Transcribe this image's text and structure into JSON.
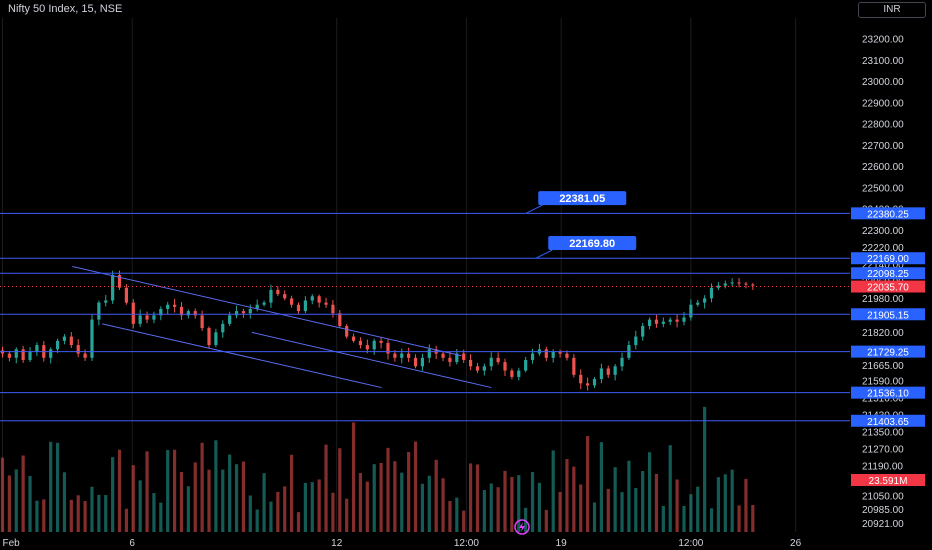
{
  "header": {
    "symbol": "Nifty 50 Index, 15, NSE",
    "currency": "INR"
  },
  "colors": {
    "background": "#000000",
    "grid": "#1c1c1c",
    "text": "#d1d4dc",
    "level_line": "#3f5bf5",
    "level_label_bg": "#2962ff",
    "channel_line": "#5a6cf0",
    "up_candle": "#26a69a",
    "down_candle": "#ef5350",
    "price_marker": "#f23645",
    "lightning_badge": "#e040fb"
  },
  "chart_data": {
    "type": "candlestick",
    "title": "Nifty 50 Index, 15, NSE",
    "y_axis": {
      "ylim": [
        20880,
        23300
      ],
      "ticks": [
        23200.0,
        23100.0,
        23000.0,
        22900.0,
        22800.0,
        22700.0,
        22600.0,
        22500.0,
        22400.0,
        22300.0,
        22220.0,
        22140.0,
        22060.0,
        21980.0,
        21900.0,
        21820.0,
        21740.0,
        21665.0,
        21590.0,
        21510.0,
        21430.0,
        21350.0,
        21270.0,
        21190.0,
        21120.0,
        21050.0,
        20985.0,
        20921.0
      ],
      "tick_labels": [
        "23200.00",
        "23100.00",
        "23000.00",
        "22900.00",
        "22800.00",
        "22700.00",
        "22600.00",
        "22500.00",
        "22400.00",
        "22300.00",
        "22220.00",
        "22140.00",
        "22060.00",
        "21980.00",
        "21900.00",
        "21820.00",
        "21740.00",
        "21665.00",
        "21590.00",
        "21510.00",
        "21430.00",
        "21350.00",
        "21270.00",
        "21190.00",
        "21120.00",
        "21050.00",
        "20985.00",
        "20921.00"
      ]
    },
    "x_axis": {
      "tick_labels": [
        "Feb",
        "6",
        "12",
        "12:00",
        "19",
        "12:00",
        "26"
      ],
      "tick_positions": [
        0,
        26,
        67,
        93,
        112,
        138,
        159
      ],
      "total_slots": 170
    },
    "horizontal_levels": [
      {
        "price": 22380.25,
        "label": "22380.25"
      },
      {
        "price": 22169.0,
        "label": "22169.00"
      },
      {
        "price": 22098.25,
        "label": "22098.25"
      },
      {
        "price": 21905.15,
        "label": "21905.15"
      },
      {
        "price": 21729.25,
        "label": "21729.25"
      },
      {
        "price": 21536.1,
        "label": "21536.10"
      },
      {
        "price": 21403.65,
        "label": "21403.65"
      }
    ],
    "callouts": [
      {
        "label": "22381.05",
        "price": 22381.05,
        "slot": 105
      },
      {
        "label": "22169.80",
        "price": 22169.8,
        "slot": 107
      }
    ],
    "channel_lines": [
      {
        "from": {
          "slot": 14,
          "price": 22130
        },
        "to": {
          "slot": 92,
          "price": 21710
        }
      },
      {
        "from": {
          "slot": 20,
          "price": 21860
        },
        "to": {
          "slot": 76,
          "price": 21560
        }
      },
      {
        "from": {
          "slot": 50,
          "price": 21820
        },
        "to": {
          "slot": 98,
          "price": 21560
        }
      }
    ],
    "current_price": {
      "value": 22035.7,
      "label": "22035.70"
    },
    "volume": {
      "current_label": "23.591M",
      "max_height_fraction": 1.0
    },
    "series": {
      "close": [
        21720,
        21700,
        21740,
        21690,
        21730,
        21760,
        21700,
        21740,
        21780,
        21800,
        21760,
        21720,
        21700,
        21880,
        21960,
        21970,
        22090,
        22030,
        21960,
        21860,
        21900,
        21880,
        21900,
        21930,
        21950,
        21940,
        21900,
        21920,
        21900,
        21840,
        21760,
        21820,
        21860,
        21900,
        21920,
        21910,
        21930,
        21950,
        21960,
        22020,
        22000,
        21980,
        21950,
        21920,
        21970,
        21990,
        21960,
        21950,
        21910,
        21850,
        21800,
        21780,
        21760,
        21740,
        21780,
        21770,
        21720,
        21700,
        21720,
        21700,
        21660,
        21700,
        21740,
        21720,
        21700,
        21680,
        21720,
        21690,
        21660,
        21640,
        21660,
        21700,
        21680,
        21640,
        21610,
        21640,
        21690,
        21720,
        21740,
        21700,
        21730,
        21720,
        21700,
        21620,
        21580,
        21570,
        21600,
        21650,
        21620,
        21660,
        21700,
        21760,
        21800,
        21850,
        21880,
        21860,
        21870,
        21880,
        21870,
        21890,
        21950,
        21960,
        21980,
        22030,
        22040,
        22050,
        22055,
        22050,
        22045,
        22040
      ]
    },
    "grid": true,
    "legend": "none"
  }
}
